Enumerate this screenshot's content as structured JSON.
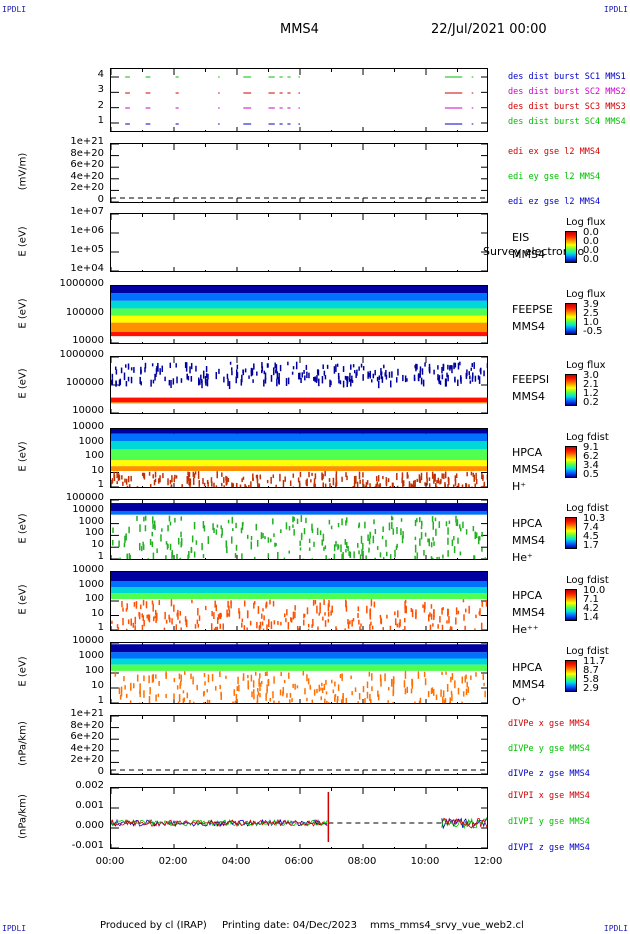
{
  "corners": {
    "tl": "IPDLI",
    "tr": "IPDLI",
    "bl": "IPDLI",
    "br": "IPDLI"
  },
  "header": {
    "spacecraft": "MMS4",
    "date": "22/Jul/2021 00:00"
  },
  "footer": {
    "produced": "Produced by cl (IRAP)",
    "printing": "Printing date: 04/Dec/2023",
    "script": "mms_mms4_srvy_vue_web2.cl"
  },
  "colors": {
    "blue": "#0000c8",
    "magenta": "#d000d0",
    "red": "#d00000",
    "green": "#00c000"
  },
  "chart_data": {
    "type": "heatmap",
    "x_ticks": [
      "00:00",
      "02:00",
      "04:00",
      "06:00",
      "08:00",
      "10:00",
      "12:00"
    ],
    "panels": [
      {
        "id": "burst",
        "ylabel": "",
        "yticks": [
          "4",
          "3",
          "2",
          "1"
        ],
        "legend": [
          {
            "text": "des dist burst SC1 MMS1",
            "color": "#0000c8"
          },
          {
            "text": "des dist burst SC2 MMS2",
            "color": "#d000d0"
          },
          {
            "text": "des dist burst SC3 MMS3",
            "color": "#d00000"
          },
          {
            "text": "des dist burst SC4 MMS4",
            "color": "#00c000"
          }
        ]
      },
      {
        "id": "edi",
        "ylabel": "(mV/m)",
        "yticks": [
          "1e+21",
          "8e+20",
          "6e+20",
          "4e+20",
          "2e+20",
          "0"
        ],
        "legend": [
          {
            "text": "edi ex gse l2 MMS4",
            "color": "#d00000"
          },
          {
            "text": "edi ey gse l2 MMS4",
            "color": "#00c000"
          },
          {
            "text": "edi ez gse l2 MMS4",
            "color": "#0000c8"
          }
        ]
      },
      {
        "id": "eis",
        "ylabel": "E (eV)",
        "yticks": [
          "1e+07",
          "1e+06",
          "1e+05",
          "1e+04"
        ],
        "right": [
          "EIS",
          "MMS4"
        ],
        "overlay": "Survey electron to",
        "cbar_title": "Log flux",
        "cbar": [
          "0.0",
          "0.0",
          "0.0",
          "0.0"
        ]
      },
      {
        "id": "feepse",
        "ylabel": "E (eV)",
        "yticks": [
          "1000000",
          "100000",
          "10000"
        ],
        "right": [
          "FEEPSE",
          "MMS4"
        ],
        "cbar_title": "Log flux",
        "cbar": [
          "3.9",
          "2.5",
          "1.0",
          "-0.5"
        ]
      },
      {
        "id": "feepsi",
        "ylabel": "E (eV)",
        "yticks": [
          "1000000",
          "100000",
          "10000"
        ],
        "right": [
          "FEEPSI",
          "MMS4"
        ],
        "cbar_title": "Log flux",
        "cbar": [
          "3.0",
          "2.1",
          "1.2",
          "0.2"
        ]
      },
      {
        "id": "hpca_h",
        "ylabel": "E (eV)",
        "yticks": [
          "10000",
          "1000",
          "100",
          "10",
          "1"
        ],
        "right": [
          "HPCA",
          "MMS4",
          "H⁺"
        ],
        "cbar_title": "Log fdist",
        "cbar": [
          "9.1",
          "6.2",
          "3.4",
          "0.5"
        ]
      },
      {
        "id": "hpca_he",
        "ylabel": "E (eV)",
        "yticks": [
          "100000",
          "10000",
          "1000",
          "100",
          "10",
          "1"
        ],
        "right": [
          "HPCA",
          "MMS4",
          "He⁺"
        ],
        "cbar_title": "Log fdist",
        "cbar": [
          "10.3",
          "7.4",
          "4.5",
          "1.7"
        ]
      },
      {
        "id": "hpca_hepp",
        "ylabel": "E (eV)",
        "yticks": [
          "10000",
          "1000",
          "100",
          "10",
          "1"
        ],
        "right": [
          "HPCA",
          "MMS4",
          "He⁺⁺"
        ],
        "cbar_title": "Log fdist",
        "cbar": [
          "10.0",
          "7.1",
          "4.2",
          "1.4"
        ]
      },
      {
        "id": "hpca_o",
        "ylabel": "E (eV)",
        "yticks": [
          "10000",
          "1000",
          "100",
          "10",
          "1"
        ],
        "right": [
          "HPCA",
          "MMS4",
          "O⁺"
        ],
        "cbar_title": "Log fdist",
        "cbar": [
          "11.7",
          "8.7",
          "5.8",
          "2.9"
        ]
      },
      {
        "id": "divpe",
        "ylabel": "(nPa/km)",
        "yticks": [
          "1e+21",
          "8e+20",
          "6e+20",
          "4e+20",
          "2e+20",
          "0"
        ],
        "legend": [
          {
            "text": "dIVPe x gse MMS4",
            "color": "#d00000"
          },
          {
            "text": "dIVPe y gse MMS4",
            "color": "#00c000"
          },
          {
            "text": "dIVPe z gse MMS4",
            "color": "#0000c8"
          }
        ]
      },
      {
        "id": "divpi",
        "ylabel": "(nPa/km)",
        "yticks": [
          "0.002",
          "0.001",
          "0.000",
          "-0.001"
        ],
        "legend": [
          {
            "text": "dIVPI x gse MMS4",
            "color": "#d00000"
          },
          {
            "text": "dIVPI y gse MMS4",
            "color": "#00c000"
          },
          {
            "text": "dIVPI z gse MMS4",
            "color": "#0000c8"
          }
        ]
      }
    ],
    "burst_intervals_hours": [
      [
        0.45,
        0.6
      ],
      [
        1.1,
        1.25
      ],
      [
        2.05,
        2.15
      ],
      [
        3.4,
        3.45
      ],
      [
        4.2,
        4.45
      ],
      [
        5.0,
        5.2
      ],
      [
        5.35,
        5.45
      ],
      [
        5.6,
        5.7
      ],
      [
        5.95,
        6.0
      ],
      [
        10.6,
        11.15
      ],
      [
        11.45,
        11.5
      ]
    ],
    "divpi_gap_hours": [
      6.9,
      10.5
    ]
  }
}
